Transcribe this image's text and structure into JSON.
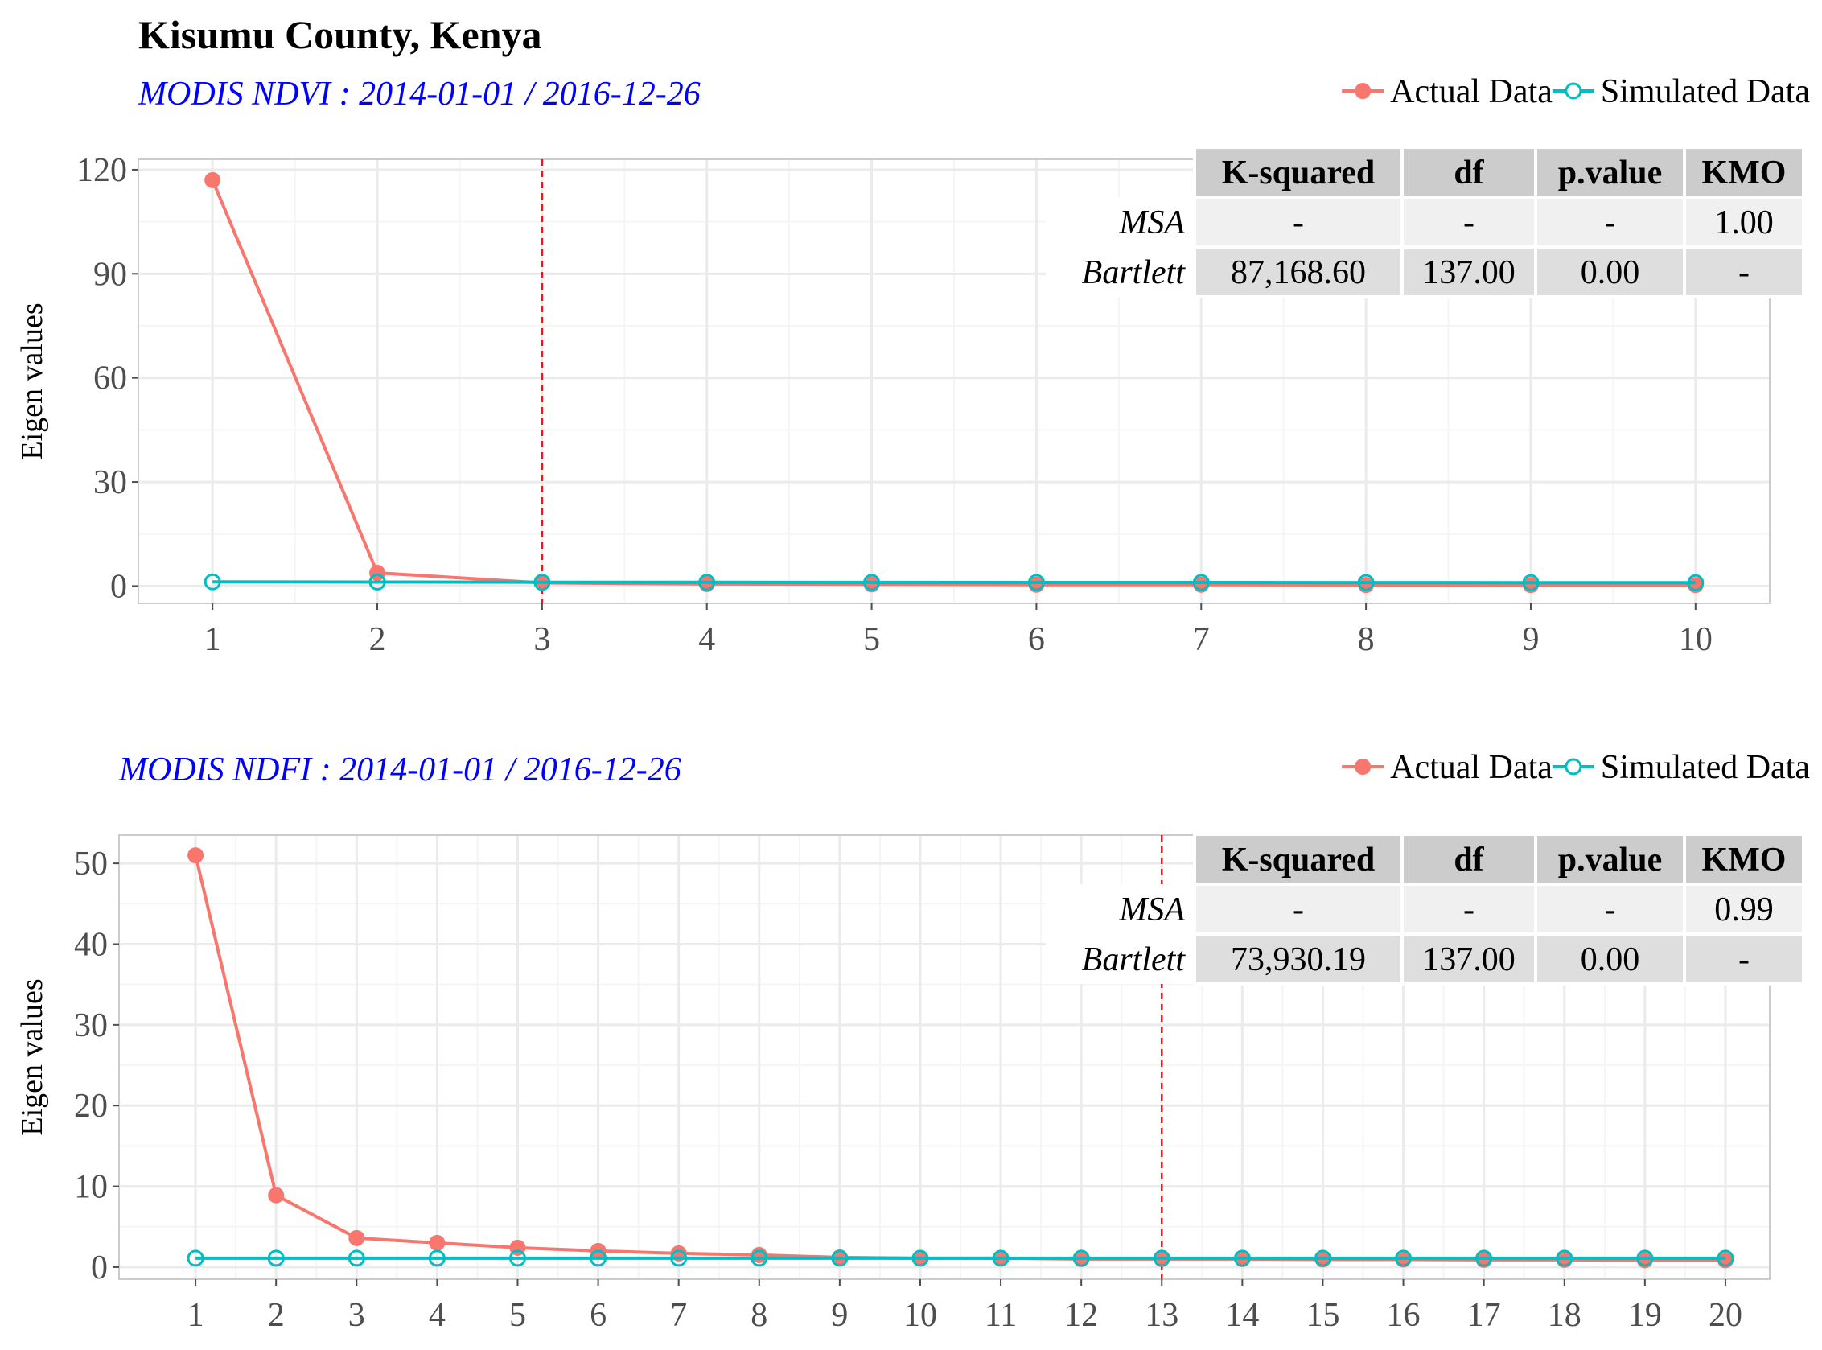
{
  "page": {
    "title": "Kisumu County, Kenya"
  },
  "legend": {
    "actual": "Actual Data",
    "simulated": "Simulated Data"
  },
  "colors": {
    "actual": "#F8766D",
    "simulated": "#00BFC4",
    "subtitle": "#0000FF",
    "cutoff_line": "#E41A1C",
    "grid_major": "#EBEBEB",
    "grid_minor": "#F5F5F5",
    "panel_border": "#CCCCCC",
    "table_header": "#CCCCCC",
    "table_row1": "#F0F0F0",
    "table_row2": "#DEDEDE"
  },
  "chart_data": [
    {
      "type": "line",
      "subtitle": "MODIS NDVI  :  2014-01-01   /   2016-12-26",
      "ylabel": "Eigen values",
      "xlabel": "",
      "x": [
        1,
        2,
        3,
        4,
        5,
        6,
        7,
        8,
        9,
        10
      ],
      "xlim": [
        0.55,
        10.45
      ],
      "ylim": [
        -5,
        123
      ],
      "yticks": [
        0,
        30,
        60,
        90,
        120
      ],
      "cutoff_x": 3,
      "series": [
        {
          "name": "Actual Data",
          "values": [
            117,
            3.8,
            0.9,
            0.6,
            0.5,
            0.4,
            0.4,
            0.3,
            0.3,
            0.3
          ]
        },
        {
          "name": "Simulated Data",
          "values": [
            1.2,
            1.15,
            1.1,
            1.08,
            1.06,
            1.04,
            1.02,
            1.0,
            0.98,
            0.96
          ]
        }
      ],
      "table": {
        "headers": [
          "K-squared",
          "df",
          "p.value",
          "KMO"
        ],
        "rows": [
          {
            "label": "MSA",
            "cells": [
              "-",
              "-",
              "-",
              "1.00"
            ]
          },
          {
            "label": "Bartlett",
            "cells": [
              "87,168.60",
              "137.00",
              "0.00",
              "-"
            ]
          }
        ]
      }
    },
    {
      "type": "line",
      "subtitle": "MODIS NDFI  :  2014-01-01   /   2016-12-26",
      "ylabel": "Eigen values",
      "xlabel": "",
      "x": [
        1,
        2,
        3,
        4,
        5,
        6,
        7,
        8,
        9,
        10,
        11,
        12,
        13,
        14,
        15,
        16,
        17,
        18,
        19,
        20
      ],
      "xlim": [
        0.05,
        20.55
      ],
      "ylim": [
        -1.5,
        53.5
      ],
      "yticks": [
        0,
        10,
        20,
        30,
        40,
        50
      ],
      "cutoff_x": 13,
      "series": [
        {
          "name": "Actual Data",
          "values": [
            51,
            8.9,
            3.6,
            3.0,
            2.4,
            2.0,
            1.7,
            1.5,
            1.2,
            1.1,
            1.1,
            1.0,
            1.0,
            1.0,
            0.95,
            0.95,
            0.9,
            0.9,
            0.85,
            0.85
          ]
        },
        {
          "name": "Simulated Data",
          "values": [
            1.1,
            1.1,
            1.1,
            1.1,
            1.1,
            1.1,
            1.1,
            1.1,
            1.1,
            1.1,
            1.1,
            1.1,
            1.1,
            1.1,
            1.1,
            1.1,
            1.1,
            1.1,
            1.1,
            1.1
          ]
        }
      ],
      "table": {
        "headers": [
          "K-squared",
          "df",
          "p.value",
          "KMO"
        ],
        "rows": [
          {
            "label": "MSA",
            "cells": [
              "-",
              "-",
              "-",
              "0.99"
            ]
          },
          {
            "label": "Bartlett",
            "cells": [
              "73,930.19",
              "137.00",
              "0.00",
              "-"
            ]
          }
        ]
      }
    }
  ]
}
